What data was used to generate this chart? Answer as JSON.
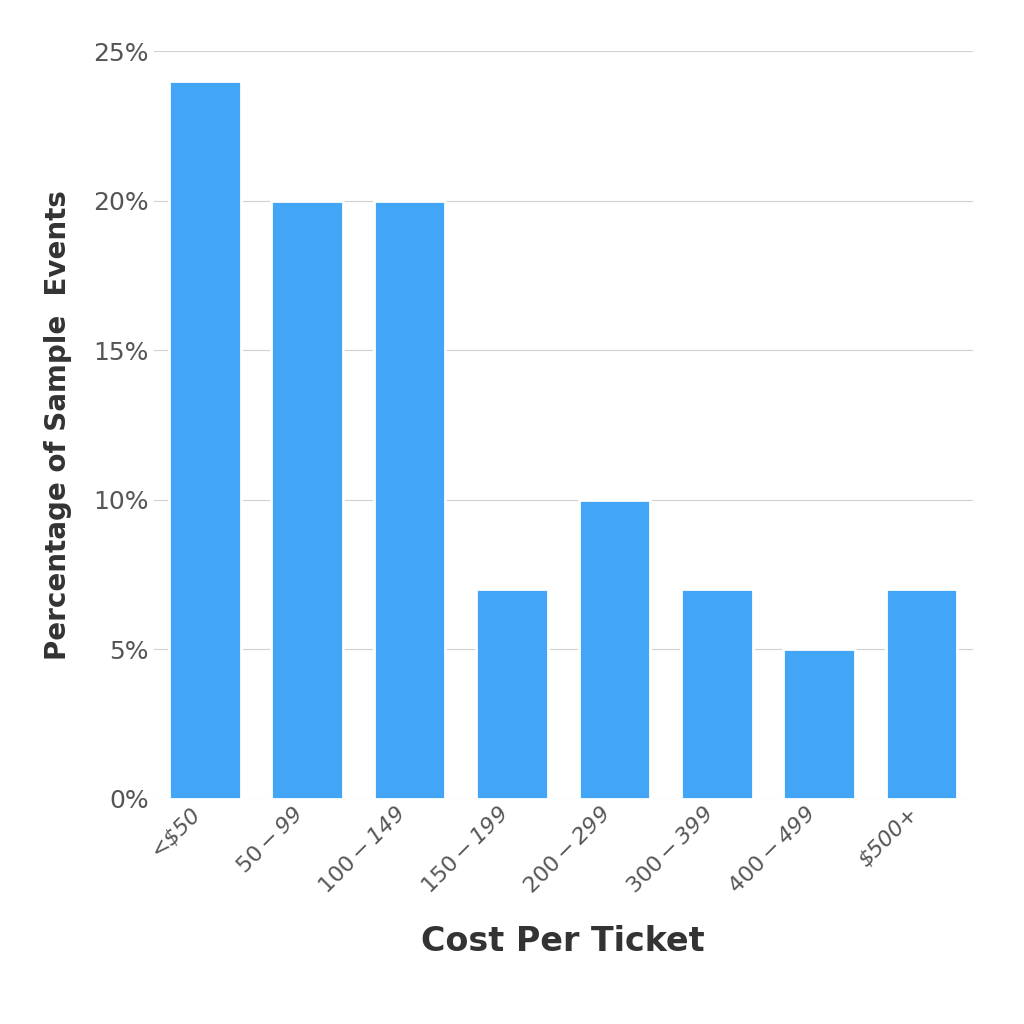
{
  "categories": [
    "<$50",
    "$50-$99",
    "$100-$149",
    "$150-$199",
    "$200-$299",
    "$300-$399",
    "$400-$499",
    "$500+"
  ],
  "values": [
    24,
    20,
    20,
    7,
    10,
    7,
    5,
    7
  ],
  "bar_color": "#42A5F5",
  "xlabel": "Cost Per Ticket",
  "ylabel": "Percentage of Sample  Events",
  "ylim": [
    0,
    25
  ],
  "yticks": [
    0,
    5,
    10,
    15,
    20,
    25
  ],
  "background_color": "#ffffff",
  "xlabel_fontsize": 24,
  "ylabel_fontsize": 20,
  "ytick_fontsize": 18,
  "xtick_fontsize": 16,
  "bar_width": 0.7,
  "grid_color": "#d0d0d0",
  "grid_linewidth": 0.8,
  "text_color": "#555555",
  "label_color": "#333333"
}
